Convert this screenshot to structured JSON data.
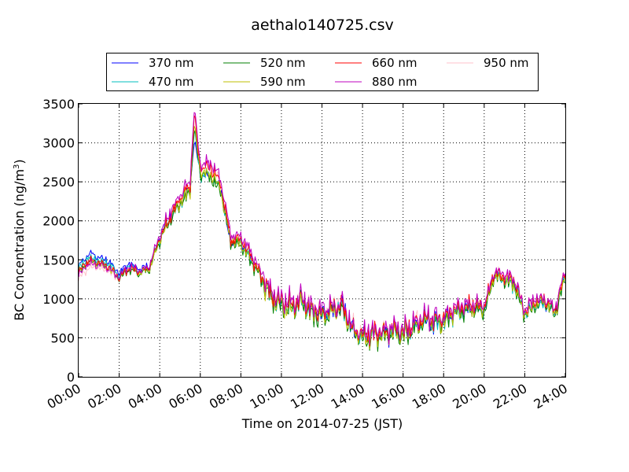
{
  "chart_data": {
    "type": "line",
    "title": "aethalo140725.csv",
    "xlabel": "Time on 2014-07-25 (JST)",
    "ylabel": "BC Concentration (ng/m",
    "ylabel_sup": "3",
    "ylabel_end": ")",
    "xlim": [
      "00:00",
      "24:00"
    ],
    "ylim": [
      0,
      3500
    ],
    "x_ticks": [
      "00:00",
      "02:00",
      "04:00",
      "06:00",
      "08:00",
      "10:00",
      "12:00",
      "14:00",
      "16:00",
      "18:00",
      "20:00",
      "22:00",
      "24:00"
    ],
    "y_ticks": [
      0,
      500,
      1000,
      1500,
      2000,
      2500,
      3000,
      3500
    ],
    "grid": true,
    "legend_placement": "top-center",
    "x_hours": [
      0,
      0.5,
      1,
      1.5,
      2,
      2.5,
      3,
      3.5,
      4,
      4.5,
      5,
      5.5,
      5.7,
      6,
      6.5,
      7,
      7.5,
      8,
      8.5,
      9,
      9.5,
      10,
      10.5,
      11,
      11.5,
      12,
      12.5,
      13,
      13.5,
      14,
      14.5,
      15,
      15.5,
      16,
      16.5,
      17,
      17.5,
      18,
      18.5,
      19,
      19.5,
      20,
      20.5,
      21,
      21.5,
      22,
      22.5,
      23,
      23.5,
      24
    ],
    "series": [
      {
        "name": "370 nm",
        "color": "#0000ff",
        "values": [
          1420,
          1580,
          1540,
          1480,
          1320,
          1460,
          1380,
          1420,
          1800,
          2050,
          2250,
          2420,
          3050,
          2580,
          2580,
          2420,
          1700,
          1720,
          1520,
          1300,
          1050,
          930,
          900,
          980,
          850,
          800,
          850,
          900,
          620,
          520,
          560,
          540,
          620,
          560,
          630,
          720,
          700,
          720,
          830,
          860,
          880,
          870,
          1300,
          1250,
          1180,
          800,
          930,
          950,
          820,
          1300
        ]
      },
      {
        "name": "470 nm",
        "color": "#00bfbf",
        "values": [
          1390,
          1530,
          1500,
          1450,
          1300,
          1420,
          1360,
          1400,
          1770,
          2020,
          2220,
          2400,
          3150,
          2600,
          2580,
          2400,
          1720,
          1700,
          1500,
          1280,
          1030,
          920,
          880,
          960,
          830,
          780,
          830,
          880,
          600,
          500,
          540,
          520,
          600,
          540,
          610,
          700,
          690,
          700,
          810,
          850,
          870,
          850,
          1280,
          1240,
          1170,
          790,
          920,
          940,
          810,
          1280
        ]
      },
      {
        "name": "520 nm",
        "color": "#007f00",
        "values": [
          1330,
          1480,
          1460,
          1400,
          1250,
          1380,
          1320,
          1380,
          1740,
          2000,
          2200,
          2380,
          3200,
          2600,
          2560,
          2380,
          1700,
          1680,
          1480,
          1250,
          990,
          900,
          860,
          940,
          810,
          760,
          810,
          860,
          580,
          480,
          520,
          500,
          590,
          520,
          600,
          690,
          680,
          690,
          800,
          840,
          860,
          840,
          1270,
          1230,
          1160,
          780,
          910,
          930,
          800,
          1270
        ]
      },
      {
        "name": "590 nm",
        "color": "#bfbf00",
        "values": [
          1350,
          1470,
          1450,
          1390,
          1260,
          1390,
          1330,
          1390,
          1760,
          2020,
          2230,
          2400,
          3250,
          2620,
          2600,
          2400,
          1730,
          1710,
          1500,
          1270,
          1010,
          920,
          880,
          960,
          830,
          780,
          830,
          880,
          600,
          500,
          540,
          520,
          610,
          540,
          620,
          710,
          700,
          710,
          820,
          860,
          880,
          860,
          1290,
          1250,
          1180,
          800,
          930,
          950,
          820,
          1290
        ]
      },
      {
        "name": "660 nm",
        "color": "#ff0000",
        "values": [
          1360,
          1480,
          1470,
          1410,
          1270,
          1400,
          1350,
          1410,
          1790,
          2060,
          2280,
          2460,
          3350,
          2680,
          2680,
          2480,
          1760,
          1760,
          1550,
          1300,
          1050,
          960,
          920,
          1000,
          870,
          820,
          870,
          920,
          640,
          540,
          580,
          560,
          650,
          580,
          660,
          750,
          740,
          750,
          860,
          900,
          920,
          900,
          1330,
          1290,
          1220,
          840,
          970,
          990,
          860,
          1330
        ]
      },
      {
        "name": "880 nm",
        "color": "#bf00bf",
        "values": [
          1300,
          1450,
          1440,
          1380,
          1280,
          1420,
          1360,
          1430,
          1820,
          2100,
          2330,
          2520,
          3430,
          2740,
          2740,
          2540,
          1820,
          1820,
          1600,
          1350,
          1080,
          990,
          950,
          1030,
          900,
          850,
          900,
          950,
          660,
          560,
          600,
          580,
          670,
          600,
          680,
          770,
          760,
          770,
          880,
          920,
          940,
          920,
          1360,
          1320,
          1250,
          860,
          990,
          1010,
          880,
          1360
        ]
      },
      {
        "name": "950 nm",
        "color": "#ffc0cb",
        "values": [
          1250,
          1400,
          1400,
          1350,
          1250,
          1380,
          1330,
          1400,
          1790,
          2070,
          2300,
          2480,
          3380,
          2700,
          2700,
          2500,
          1790,
          1790,
          1570,
          1320,
          1060,
          970,
          930,
          1010,
          880,
          830,
          880,
          930,
          640,
          540,
          580,
          560,
          650,
          580,
          660,
          750,
          740,
          750,
          860,
          900,
          920,
          900,
          1340,
          1300,
          1230,
          840,
          970,
          990,
          860,
          1340
        ]
      }
    ]
  }
}
